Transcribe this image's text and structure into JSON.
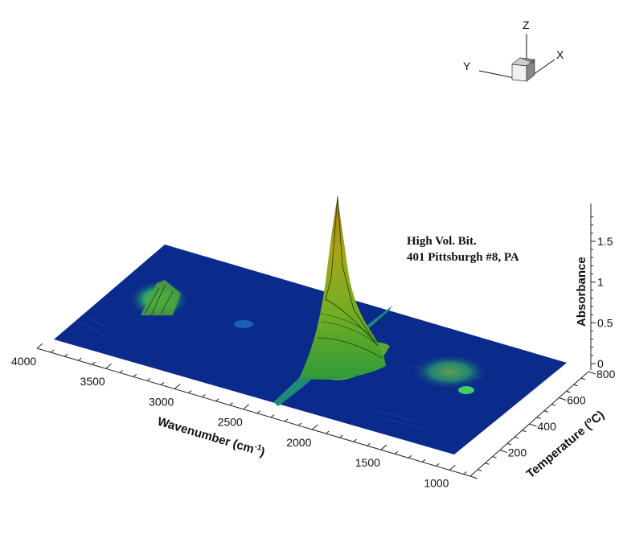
{
  "chart_data": {
    "type": "surface3d",
    "annotation": [
      "High Vol. Bit.",
      "401 Pittsburgh #8, PA"
    ],
    "x_axis": {
      "label": "Wavenumber (cm",
      "label_sup": "-1",
      "label_end": ")",
      "ticks": [
        "4000",
        "3500",
        "3000",
        "2500",
        "2000",
        "1500",
        "1000"
      ],
      "range": [
        4000,
        1000
      ],
      "reversed": true
    },
    "y_axis": {
      "label": "Temperature (",
      "label_sup": "o",
      "label_end": "C)",
      "ticks": [
        "200",
        "400",
        "600",
        "800"
      ],
      "range": [
        0,
        800
      ]
    },
    "z_axis": {
      "label": "Absorbance",
      "ticks": [
        "0",
        "0.5",
        "1",
        "1.5"
      ],
      "range": [
        0,
        1.9
      ]
    },
    "orientation_axes": {
      "x": "X",
      "y": "Y",
      "z": "Z"
    },
    "peaks": [
      {
        "wavenumber": 2350,
        "temperature_range": [
          450,
          800
        ],
        "max_absorbance": 1.85
      },
      {
        "wavenumber": 3000,
        "temperature_range": [
          300,
          650
        ],
        "max_absorbance": 0.3
      },
      {
        "wavenumber": 1600,
        "temperature_range": [
          350,
          700
        ],
        "max_absorbance": 0.15
      },
      {
        "wavenumber": 1100,
        "temperature_range": [
          400,
          750
        ],
        "max_absorbance": 0.1
      }
    ],
    "colors": {
      "background": "#ffffff",
      "base": "#0a2a8c",
      "low": "#1a9a6a",
      "mid": "#78b428",
      "high": "#b4a014"
    }
  }
}
